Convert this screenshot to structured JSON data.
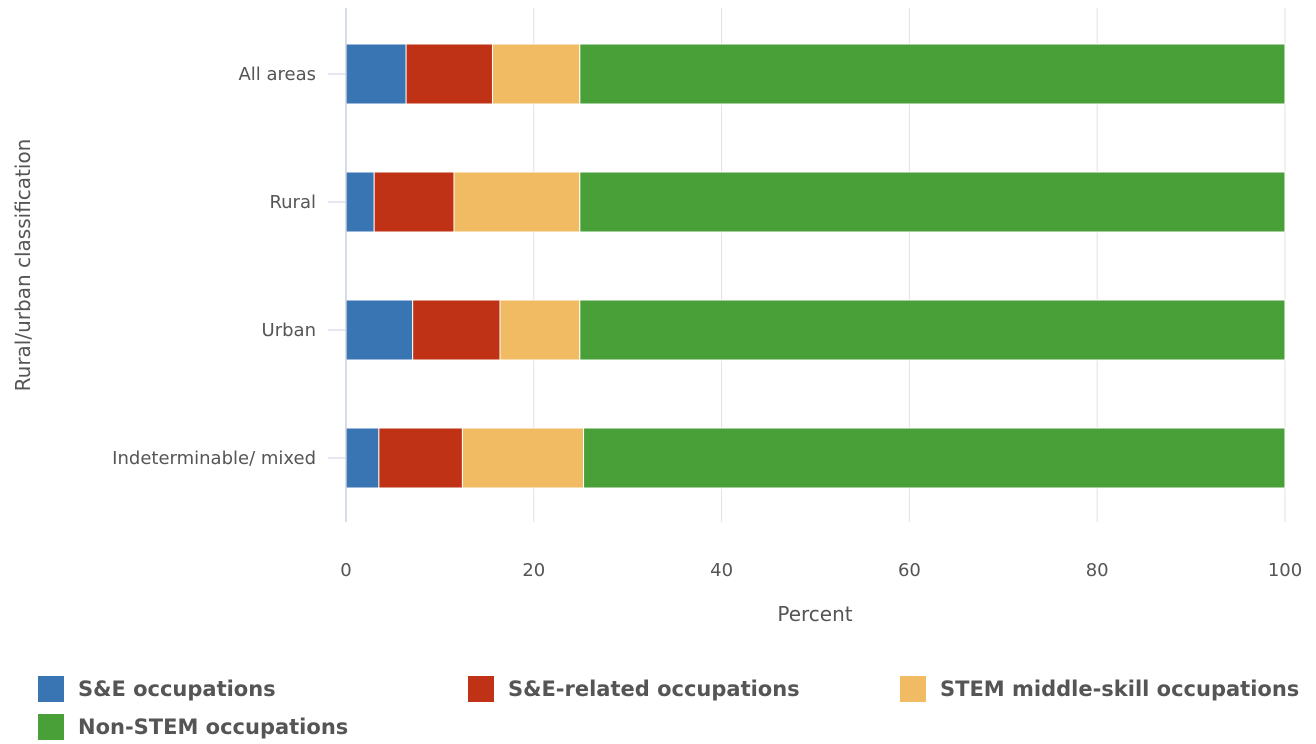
{
  "chart_data": {
    "type": "bar",
    "orientation": "horizontal",
    "stacked": true,
    "title": "",
    "xlabel": "Percent",
    "ylabel": "Rural/urban classification",
    "xlim": [
      0,
      100
    ],
    "x_ticks": [
      "0",
      "20",
      "40",
      "60",
      "80",
      "100"
    ],
    "grid": true,
    "legend_position": "bottom",
    "categories": [
      "All areas",
      "Rural",
      "Urban",
      "Indeterminable/ mixed"
    ],
    "series": [
      {
        "name": "S&E occupations",
        "color": "#3a75b3",
        "values": [
          6.4,
          3.0,
          7.1,
          3.5
        ]
      },
      {
        "name": "S&E-related occupations",
        "color": "#c03216",
        "values": [
          9.2,
          8.5,
          9.3,
          8.9
        ]
      },
      {
        "name": "STEM middle-skill occupations",
        "color": "#f0bb62",
        "values": [
          9.3,
          13.4,
          8.5,
          12.9
        ]
      },
      {
        "name": "Non-STEM occupations",
        "color": "#4aa038",
        "values": [
          75.1,
          75.1,
          75.1,
          74.7
        ]
      }
    ]
  }
}
